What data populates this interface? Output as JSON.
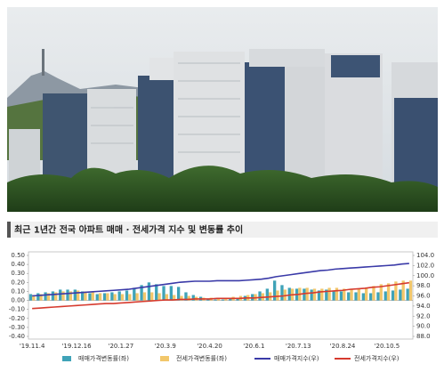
{
  "chart_data": {
    "type": "bar-line",
    "title": "최근 1년간 전국 아파트 매매 · 전세가격 지수 및 변동률 추이",
    "categories": [
      "'19.11.4",
      null,
      null,
      null,
      null,
      null,
      "'19.12.16",
      null,
      null,
      null,
      null,
      null,
      "'20.1.27",
      null,
      null,
      null,
      null,
      null,
      "'20.3.9",
      null,
      null,
      null,
      null,
      null,
      "'20.4.20",
      null,
      null,
      null,
      null,
      null,
      "'20.6.1",
      null,
      null,
      null,
      null,
      null,
      "'20.7.13",
      null,
      null,
      null,
      null,
      null,
      "'20.8.24",
      null,
      null,
      null,
      null,
      null,
      "'20.10.5",
      null,
      null,
      null
    ],
    "series": [
      {
        "name": "매매가격변동률(좌)",
        "kind": "bar",
        "axis": "y",
        "color": "#3fa3b8",
        "values": [
          0.07,
          0.08,
          0.09,
          0.1,
          0.12,
          0.12,
          0.12,
          0.1,
          0.08,
          0.07,
          0.08,
          0.09,
          0.1,
          0.11,
          0.14,
          0.17,
          0.2,
          0.18,
          0.16,
          0.16,
          0.15,
          0.09,
          0.06,
          0.04,
          0.02,
          0.01,
          0.01,
          0.02,
          0.03,
          0.05,
          0.07,
          0.1,
          0.13,
          0.22,
          0.17,
          0.14,
          0.13,
          0.13,
          0.12,
          0.11,
          0.12,
          0.11,
          0.1,
          0.09,
          0.09,
          0.08,
          0.08,
          0.09,
          0.1,
          0.11,
          0.12,
          0.13
        ]
      },
      {
        "name": "전세가격변동률(좌)",
        "kind": "bar",
        "axis": "y",
        "color": "#f2c76b",
        "values": [
          0.06,
          0.07,
          0.08,
          0.09,
          0.1,
          0.1,
          0.11,
          0.1,
          0.09,
          0.08,
          0.08,
          0.07,
          0.07,
          0.07,
          0.08,
          0.09,
          0.09,
          0.08,
          0.07,
          0.06,
          0.05,
          0.05,
          0.04,
          0.03,
          0.03,
          0.03,
          0.03,
          0.04,
          0.05,
          0.06,
          0.07,
          0.08,
          0.09,
          0.11,
          0.12,
          0.13,
          0.14,
          0.14,
          0.13,
          0.13,
          0.14,
          0.14,
          0.13,
          0.13,
          0.13,
          0.14,
          0.16,
          0.18,
          0.19,
          0.21,
          0.22,
          0.22
        ]
      },
      {
        "name": "매매가격지수(우)",
        "kind": "line",
        "axis": "y2",
        "color": "#3a3aa8",
        "values": [
          96.0,
          96.1,
          96.2,
          96.3,
          96.4,
          96.5,
          96.6,
          96.7,
          96.8,
          96.9,
          97.0,
          97.1,
          97.2,
          97.3,
          97.5,
          97.7,
          97.9,
          98.1,
          98.3,
          98.5,
          98.7,
          98.8,
          98.9,
          98.9,
          98.9,
          99.0,
          99.0,
          99.0,
          99.0,
          99.1,
          99.2,
          99.3,
          99.5,
          99.8,
          100.0,
          100.2,
          100.4,
          100.6,
          100.8,
          101.0,
          101.1,
          101.3,
          101.4,
          101.5,
          101.6,
          101.7,
          101.8,
          101.9,
          102.0,
          102.1,
          102.3,
          102.4
        ]
      },
      {
        "name": "전세가격지수(우)",
        "kind": "line",
        "axis": "y2",
        "color": "#d63a2e",
        "values": [
          93.5,
          93.6,
          93.7,
          93.8,
          93.9,
          94.0,
          94.1,
          94.2,
          94.3,
          94.4,
          94.5,
          94.5,
          94.6,
          94.7,
          94.8,
          94.9,
          95.0,
          95.1,
          95.2,
          95.2,
          95.3,
          95.3,
          95.4,
          95.4,
          95.4,
          95.5,
          95.5,
          95.5,
          95.5,
          95.6,
          95.6,
          95.7,
          95.8,
          95.9,
          96.0,
          96.2,
          96.3,
          96.5,
          96.6,
          96.8,
          96.9,
          97.0,
          97.1,
          97.3,
          97.4,
          97.5,
          97.7,
          97.8,
          98.0,
          98.2,
          98.4,
          98.6
        ]
      }
    ],
    "ylim": [
      -0.4,
      0.5
    ],
    "yticks": [
      {
        "value": -0.4,
        "label": "-0.40"
      },
      {
        "value": -0.3,
        "label": "-0.30"
      },
      {
        "value": -0.2,
        "label": "-0.20"
      },
      {
        "value": -0.1,
        "label": "-0.10"
      },
      {
        "value": 0,
        "label": "0.00"
      },
      {
        "value": 0.1,
        "label": "0.10"
      },
      {
        "value": 0.2,
        "label": "0.20"
      },
      {
        "value": 0.3,
        "label": "0.30"
      },
      {
        "value": 0.4,
        "label": "0.40"
      },
      {
        "value": 0.5,
        "label": "0.50"
      }
    ],
    "y2lim": [
      88,
      104
    ],
    "y2ticks": [
      {
        "value": 88,
        "label": "88.0"
      },
      {
        "value": 90,
        "label": "90.0"
      },
      {
        "value": 92,
        "label": "92.0"
      },
      {
        "value": 94,
        "label": "94.0"
      },
      {
        "value": 96,
        "label": "96.0"
      },
      {
        "value": 98,
        "label": "98.0"
      },
      {
        "value": 100,
        "label": "100.0"
      },
      {
        "value": 102,
        "label": "102.0"
      },
      {
        "value": 104,
        "label": "104.0"
      }
    ],
    "grid": false,
    "legend": "bottom"
  }
}
